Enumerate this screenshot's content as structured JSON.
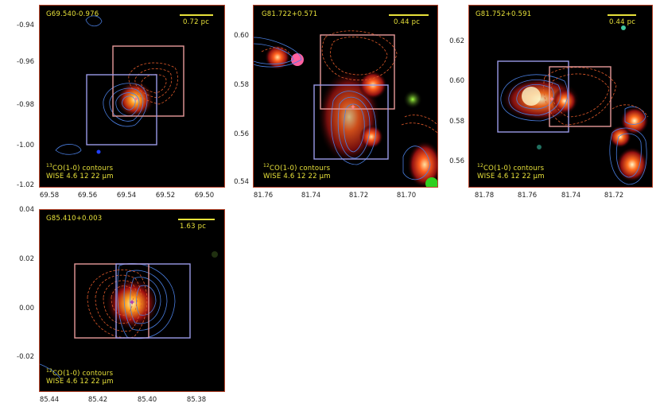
{
  "panels": [
    {
      "name": "G69.540-0.976",
      "scale_label": "0.72 pc",
      "contour_label": "13CO(1-0) contours",
      "contour_sup": "13",
      "contour_rest": "CO(1-0) contours",
      "wise_label": "WISE 4.6 12 22 μm",
      "yticks": [
        "-0.94",
        "-0.96",
        "-0.98",
        "-1.00",
        "-1.02"
      ],
      "xticks": [
        "69.58",
        "69.56",
        "69.54",
        "69.52",
        "69.50"
      ]
    },
    {
      "name": "G81.722+0.571",
      "scale_label": "0.44 pc",
      "contour_label": "12CO(1-0) contours",
      "contour_sup": "12",
      "contour_rest": "CO(1-0) contours",
      "wise_label": "WISE 4.6 12 22 μm",
      "yticks": [
        "0.60",
        "0.58",
        "0.56",
        "0.54"
      ],
      "xticks": [
        "81.76",
        "81.74",
        "81.72",
        "81.70"
      ]
    },
    {
      "name": "G81.752+0.591",
      "scale_label": "0.44 pc",
      "contour_label": "12CO(1-0) contours",
      "contour_sup": "12",
      "contour_rest": "CO(1-0) contours",
      "wise_label": "WISE 4.6 12 22 μm",
      "yticks": [
        "0.62",
        "0.60",
        "0.58",
        "0.56"
      ],
      "xticks": [
        "81.78",
        "81.76",
        "81.74",
        "81.72"
      ]
    },
    {
      "name": "G85.410+0.003",
      "scale_label": "1.63 pc",
      "contour_label": "12CO(1-0) contours",
      "contour_sup": "12",
      "contour_rest": "CO(1-0) contours",
      "wise_label": "WISE 4.6 12 22 μm",
      "yticks": [
        "0.04",
        "0.02",
        "0.00",
        "-0.02"
      ],
      "xticks": [
        "85.44",
        "85.42",
        "85.40",
        "85.38"
      ]
    }
  ],
  "colors": {
    "label": "#e8e23a",
    "blue_contour": "#4a7ee0",
    "red_contour": "#e05a2a",
    "blue_box": "#9a9ae8",
    "red_box": "#e89a9a",
    "frame": "#b8442a"
  }
}
